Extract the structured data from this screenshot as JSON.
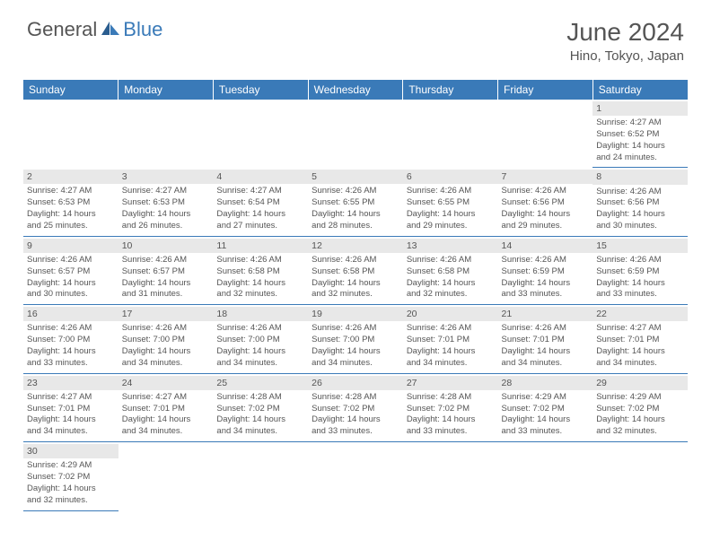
{
  "logo": {
    "part1": "General",
    "part2": "Blue"
  },
  "title": "June 2024",
  "location": "Hino, Tokyo, Japan",
  "colors": {
    "header_bg": "#3a7ab8",
    "header_text": "#ffffff",
    "text": "#555555",
    "daynum_bg": "#e8e8e8",
    "border": "#3a7ab8",
    "background": "#ffffff"
  },
  "weekdays": [
    "Sunday",
    "Monday",
    "Tuesday",
    "Wednesday",
    "Thursday",
    "Friday",
    "Saturday"
  ],
  "weeks": [
    [
      null,
      null,
      null,
      null,
      null,
      null,
      {
        "day": "1",
        "sunrise": "Sunrise: 4:27 AM",
        "sunset": "Sunset: 6:52 PM",
        "daylight1": "Daylight: 14 hours",
        "daylight2": "and 24 minutes."
      }
    ],
    [
      {
        "day": "2",
        "sunrise": "Sunrise: 4:27 AM",
        "sunset": "Sunset: 6:53 PM",
        "daylight1": "Daylight: 14 hours",
        "daylight2": "and 25 minutes."
      },
      {
        "day": "3",
        "sunrise": "Sunrise: 4:27 AM",
        "sunset": "Sunset: 6:53 PM",
        "daylight1": "Daylight: 14 hours",
        "daylight2": "and 26 minutes."
      },
      {
        "day": "4",
        "sunrise": "Sunrise: 4:27 AM",
        "sunset": "Sunset: 6:54 PM",
        "daylight1": "Daylight: 14 hours",
        "daylight2": "and 27 minutes."
      },
      {
        "day": "5",
        "sunrise": "Sunrise: 4:26 AM",
        "sunset": "Sunset: 6:55 PM",
        "daylight1": "Daylight: 14 hours",
        "daylight2": "and 28 minutes."
      },
      {
        "day": "6",
        "sunrise": "Sunrise: 4:26 AM",
        "sunset": "Sunset: 6:55 PM",
        "daylight1": "Daylight: 14 hours",
        "daylight2": "and 29 minutes."
      },
      {
        "day": "7",
        "sunrise": "Sunrise: 4:26 AM",
        "sunset": "Sunset: 6:56 PM",
        "daylight1": "Daylight: 14 hours",
        "daylight2": "and 29 minutes."
      },
      {
        "day": "8",
        "sunrise": "Sunrise: 4:26 AM",
        "sunset": "Sunset: 6:56 PM",
        "daylight1": "Daylight: 14 hours",
        "daylight2": "and 30 minutes."
      }
    ],
    [
      {
        "day": "9",
        "sunrise": "Sunrise: 4:26 AM",
        "sunset": "Sunset: 6:57 PM",
        "daylight1": "Daylight: 14 hours",
        "daylight2": "and 30 minutes."
      },
      {
        "day": "10",
        "sunrise": "Sunrise: 4:26 AM",
        "sunset": "Sunset: 6:57 PM",
        "daylight1": "Daylight: 14 hours",
        "daylight2": "and 31 minutes."
      },
      {
        "day": "11",
        "sunrise": "Sunrise: 4:26 AM",
        "sunset": "Sunset: 6:58 PM",
        "daylight1": "Daylight: 14 hours",
        "daylight2": "and 32 minutes."
      },
      {
        "day": "12",
        "sunrise": "Sunrise: 4:26 AM",
        "sunset": "Sunset: 6:58 PM",
        "daylight1": "Daylight: 14 hours",
        "daylight2": "and 32 minutes."
      },
      {
        "day": "13",
        "sunrise": "Sunrise: 4:26 AM",
        "sunset": "Sunset: 6:58 PM",
        "daylight1": "Daylight: 14 hours",
        "daylight2": "and 32 minutes."
      },
      {
        "day": "14",
        "sunrise": "Sunrise: 4:26 AM",
        "sunset": "Sunset: 6:59 PM",
        "daylight1": "Daylight: 14 hours",
        "daylight2": "and 33 minutes."
      },
      {
        "day": "15",
        "sunrise": "Sunrise: 4:26 AM",
        "sunset": "Sunset: 6:59 PM",
        "daylight1": "Daylight: 14 hours",
        "daylight2": "and 33 minutes."
      }
    ],
    [
      {
        "day": "16",
        "sunrise": "Sunrise: 4:26 AM",
        "sunset": "Sunset: 7:00 PM",
        "daylight1": "Daylight: 14 hours",
        "daylight2": "and 33 minutes."
      },
      {
        "day": "17",
        "sunrise": "Sunrise: 4:26 AM",
        "sunset": "Sunset: 7:00 PM",
        "daylight1": "Daylight: 14 hours",
        "daylight2": "and 34 minutes."
      },
      {
        "day": "18",
        "sunrise": "Sunrise: 4:26 AM",
        "sunset": "Sunset: 7:00 PM",
        "daylight1": "Daylight: 14 hours",
        "daylight2": "and 34 minutes."
      },
      {
        "day": "19",
        "sunrise": "Sunrise: 4:26 AM",
        "sunset": "Sunset: 7:00 PM",
        "daylight1": "Daylight: 14 hours",
        "daylight2": "and 34 minutes."
      },
      {
        "day": "20",
        "sunrise": "Sunrise: 4:26 AM",
        "sunset": "Sunset: 7:01 PM",
        "daylight1": "Daylight: 14 hours",
        "daylight2": "and 34 minutes."
      },
      {
        "day": "21",
        "sunrise": "Sunrise: 4:26 AM",
        "sunset": "Sunset: 7:01 PM",
        "daylight1": "Daylight: 14 hours",
        "daylight2": "and 34 minutes."
      },
      {
        "day": "22",
        "sunrise": "Sunrise: 4:27 AM",
        "sunset": "Sunset: 7:01 PM",
        "daylight1": "Daylight: 14 hours",
        "daylight2": "and 34 minutes."
      }
    ],
    [
      {
        "day": "23",
        "sunrise": "Sunrise: 4:27 AM",
        "sunset": "Sunset: 7:01 PM",
        "daylight1": "Daylight: 14 hours",
        "daylight2": "and 34 minutes."
      },
      {
        "day": "24",
        "sunrise": "Sunrise: 4:27 AM",
        "sunset": "Sunset: 7:01 PM",
        "daylight1": "Daylight: 14 hours",
        "daylight2": "and 34 minutes."
      },
      {
        "day": "25",
        "sunrise": "Sunrise: 4:28 AM",
        "sunset": "Sunset: 7:02 PM",
        "daylight1": "Daylight: 14 hours",
        "daylight2": "and 34 minutes."
      },
      {
        "day": "26",
        "sunrise": "Sunrise: 4:28 AM",
        "sunset": "Sunset: 7:02 PM",
        "daylight1": "Daylight: 14 hours",
        "daylight2": "and 33 minutes."
      },
      {
        "day": "27",
        "sunrise": "Sunrise: 4:28 AM",
        "sunset": "Sunset: 7:02 PM",
        "daylight1": "Daylight: 14 hours",
        "daylight2": "and 33 minutes."
      },
      {
        "day": "28",
        "sunrise": "Sunrise: 4:29 AM",
        "sunset": "Sunset: 7:02 PM",
        "daylight1": "Daylight: 14 hours",
        "daylight2": "and 33 minutes."
      },
      {
        "day": "29",
        "sunrise": "Sunrise: 4:29 AM",
        "sunset": "Sunset: 7:02 PM",
        "daylight1": "Daylight: 14 hours",
        "daylight2": "and 32 minutes."
      }
    ],
    [
      {
        "day": "30",
        "sunrise": "Sunrise: 4:29 AM",
        "sunset": "Sunset: 7:02 PM",
        "daylight1": "Daylight: 14 hours",
        "daylight2": "and 32 minutes."
      },
      null,
      null,
      null,
      null,
      null,
      null
    ]
  ]
}
